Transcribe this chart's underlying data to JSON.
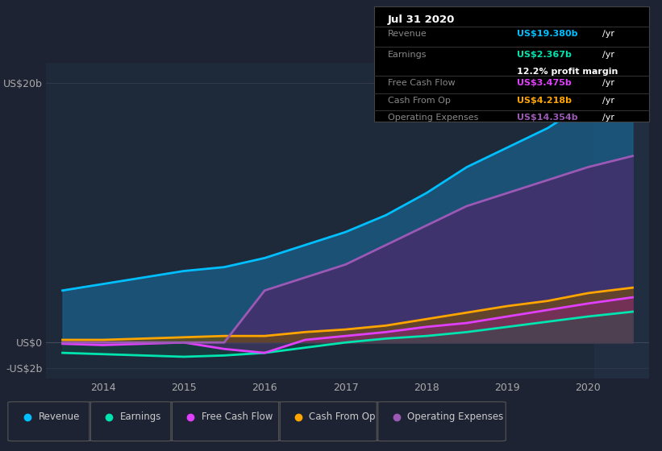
{
  "background_color": "#1e2333",
  "plot_bg_color": "#1e2a3a",
  "title": "Jul 31 2020",
  "tooltip": {
    "date": "Jul 31 2020",
    "revenue": "US$19.380b",
    "earnings": "US$2.367b",
    "profit_margin": "12.2%",
    "free_cash_flow": "US$3.475b",
    "cash_from_op": "US$4.218b",
    "operating_expenses": "US$14.354b"
  },
  "colors": {
    "revenue": "#00bfff",
    "earnings": "#00e5b0",
    "free_cash_flow": "#e040fb",
    "cash_from_op": "#ffa500",
    "operating_expenses": "#9b59b6"
  },
  "years": [
    2013.5,
    2014.0,
    2014.5,
    2015.0,
    2015.5,
    2016.0,
    2016.5,
    2017.0,
    2017.5,
    2018.0,
    2018.5,
    2019.0,
    2019.5,
    2020.0,
    2020.55
  ],
  "revenue": [
    4.0,
    4.5,
    5.0,
    5.5,
    5.8,
    6.5,
    7.5,
    8.5,
    9.8,
    11.5,
    13.5,
    15.0,
    16.5,
    18.5,
    19.38
  ],
  "earnings": [
    -0.8,
    -0.9,
    -1.0,
    -1.1,
    -1.0,
    -0.8,
    -0.4,
    0.0,
    0.3,
    0.5,
    0.8,
    1.2,
    1.6,
    2.0,
    2.367
  ],
  "free_cash_flow": [
    -0.1,
    -0.2,
    -0.1,
    0.0,
    -0.5,
    -0.8,
    0.2,
    0.5,
    0.8,
    1.2,
    1.5,
    2.0,
    2.5,
    3.0,
    3.475
  ],
  "cash_from_op": [
    0.2,
    0.2,
    0.3,
    0.4,
    0.5,
    0.5,
    0.8,
    1.0,
    1.3,
    1.8,
    2.3,
    2.8,
    3.2,
    3.8,
    4.218
  ],
  "operating_expenses": [
    0.0,
    0.0,
    0.0,
    0.0,
    0.0,
    4.0,
    5.0,
    6.0,
    7.5,
    9.0,
    10.5,
    11.5,
    12.5,
    13.5,
    14.354
  ],
  "xlim": [
    2013.3,
    2020.75
  ],
  "ylim": [
    -2.8,
    21.5
  ],
  "xticks": [
    2014,
    2015,
    2016,
    2017,
    2018,
    2019,
    2020
  ],
  "ytick_positions": [
    -2,
    0,
    20
  ],
  "ytick_labels": [
    "-US$2b",
    "US$0",
    "US$20b"
  ]
}
